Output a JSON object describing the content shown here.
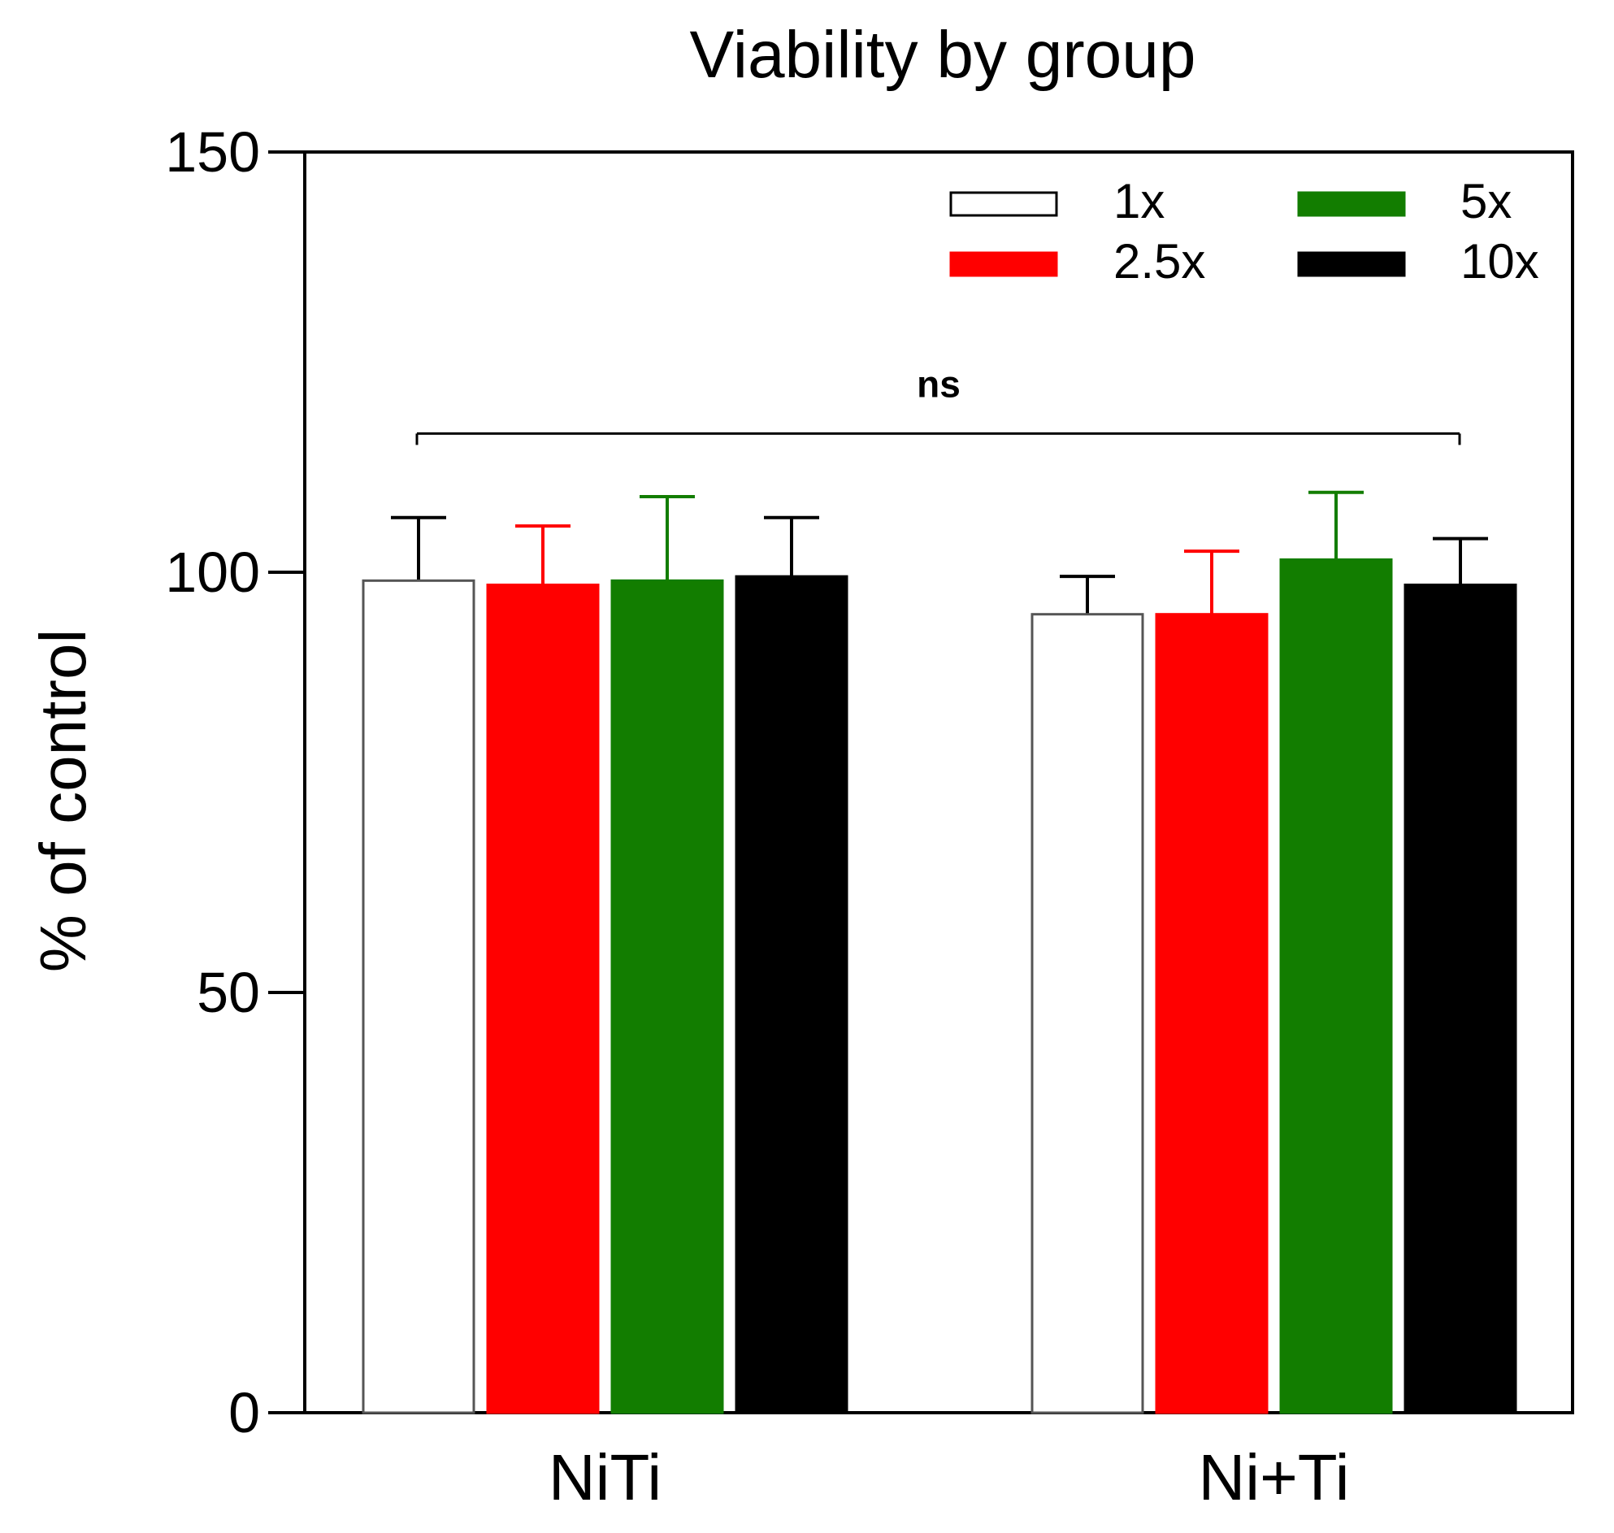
{
  "chart_data": {
    "type": "bar",
    "title": "Viability by group",
    "ylabel": "% of control",
    "xlabel": "",
    "ylim": [
      0,
      150
    ],
    "yticks": [
      0,
      50,
      100,
      150
    ],
    "categories": [
      "NiTi",
      "Ni+Ti"
    ],
    "series": [
      {
        "name": "1x",
        "values": [
          99,
          95
        ],
        "errors": [
          7.5,
          4.5
        ],
        "color": "#ffffff",
        "stroke": "#000000"
      },
      {
        "name": "2.5x",
        "values": [
          98.5,
          95
        ],
        "errors": [
          7,
          7.5
        ],
        "color": "#ff0000",
        "stroke": "#ff0000"
      },
      {
        "name": "5x",
        "values": [
          99,
          101.5
        ],
        "errors": [
          10,
          8
        ],
        "color": "#127d00",
        "stroke": "#127d00"
      },
      {
        "name": "10x",
        "values": [
          99.5,
          98.5
        ],
        "errors": [
          7,
          5.5
        ],
        "color": "#000000",
        "stroke": "#000000"
      }
    ],
    "legend_position": "top-right",
    "annotation": {
      "text": "ns",
      "bracket_y": 116.5,
      "from_category": "NiTi",
      "to_category": "Ni+Ti"
    }
  }
}
